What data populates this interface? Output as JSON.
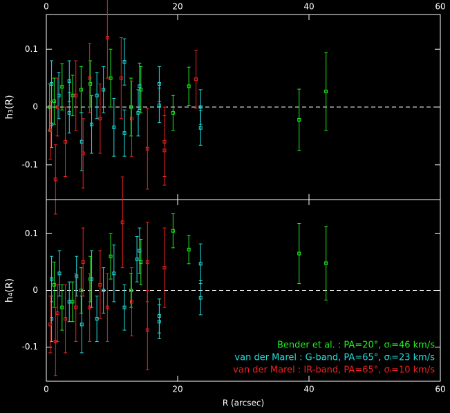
{
  "chart_data": [
    {
      "type": "errorbar",
      "ylabel": "h₃(R)",
      "xlim": [
        0,
        60
      ],
      "xticks": [
        0,
        20,
        40,
        60
      ],
      "xticks_position": "top",
      "ylim": [
        -0.16,
        0.16
      ],
      "yticks": [
        -0.1,
        0,
        0.1
      ],
      "zero_line": true,
      "series": [
        {
          "color": "#22ee22",
          "x": [
            38.5,
            42.6,
            21.7,
            19.3,
            14.4,
            12.9,
            9.8,
            6.7,
            5.3,
            4.0,
            2.4,
            1.2,
            0.5
          ],
          "values": [
            -0.022,
            0.027,
            0.036,
            -0.01,
            0.03,
            0.0,
            0.05,
            0.04,
            0.03,
            0.02,
            0.035,
            0.01,
            0.0
          ],
          "errors": [
            0.053,
            0.067,
            0.033,
            0.03,
            0.04,
            0.05,
            0.05,
            0.04,
            0.04,
            0.035,
            0.04,
            0.04,
            0.04
          ]
        },
        {
          "color": "#22dddd",
          "x": [
            23.5,
            23.5,
            17.2,
            17.2,
            14.2,
            14.0,
            11.9,
            11.9,
            10.3,
            8.7,
            7.7,
            6.9,
            5.4,
            3.5,
            3.5,
            1.9,
            0.8,
            0.8
          ],
          "values": [
            0.0,
            -0.036,
            0.04,
            0.003,
            0.036,
            -0.01,
            0.078,
            -0.045,
            -0.035,
            0.03,
            0.02,
            -0.03,
            -0.06,
            0.045,
            -0.01,
            0.02,
            0.04,
            -0.03
          ],
          "errors": [
            0.03,
            0.03,
            0.03,
            0.03,
            0.04,
            0.04,
            0.04,
            0.04,
            0.05,
            0.04,
            0.04,
            0.05,
            0.05,
            0.035,
            0.035,
            0.04,
            0.04,
            0.04
          ]
        },
        {
          "color": "#ee2222",
          "x": [
            22.8,
            18.0,
            18.0,
            15.4,
            13.0,
            11.4,
            9.3,
            8.2,
            6.6,
            5.6,
            4.5,
            2.9,
            1.7,
            1.4,
            0.6
          ],
          "values": [
            0.048,
            -0.06,
            -0.075,
            -0.072,
            -0.02,
            0.05,
            0.12,
            -0.02,
            0.05,
            -0.08,
            0.02,
            -0.06,
            0.0,
            -0.125,
            -0.04
          ],
          "errors": [
            0.05,
            0.06,
            0.06,
            0.07,
            0.065,
            0.07,
            0.07,
            0.06,
            0.06,
            0.06,
            0.06,
            0.06,
            0.05,
            0.06,
            0.05
          ]
        }
      ]
    },
    {
      "type": "errorbar",
      "ylabel": "h₄(R)",
      "xlabel": "R (arcsec)",
      "xlim": [
        0,
        60
      ],
      "xticks": [
        0,
        20,
        40,
        60
      ],
      "xticks_position": "bottom",
      "ylim": [
        -0.16,
        0.16
      ],
      "yticks": [
        -0.1,
        0,
        0.1
      ],
      "zero_line": true,
      "legend": "lower right",
      "series": [
        {
          "name": "Bender et al. : PA=20°, σᵢ=46 km/s",
          "color": "#22ee22",
          "x": [
            38.5,
            42.6,
            21.7,
            19.3,
            14.4,
            12.9,
            9.8,
            6.7,
            5.3,
            4.0,
            2.4,
            1.2
          ],
          "values": [
            0.065,
            0.048,
            0.072,
            0.105,
            0.05,
            0.0,
            0.06,
            0.02,
            0.0,
            -0.02,
            -0.03,
            0.01
          ],
          "errors": [
            0.053,
            0.065,
            0.025,
            0.03,
            0.04,
            0.03,
            0.04,
            0.04,
            0.04,
            0.035,
            0.04,
            0.04
          ]
        },
        {
          "name": "van der Marel : G-band, PA=65°, σᵢ=23 km/s",
          "color": "#22dddd",
          "x": [
            23.5,
            23.5,
            17.2,
            17.2,
            14.2,
            13.8,
            11.9,
            10.3,
            8.7,
            7.7,
            6.9,
            5.4,
            4.6,
            3.5,
            2.0,
            0.8,
            0.8
          ],
          "values": [
            0.047,
            -0.013,
            -0.045,
            -0.055,
            0.07,
            0.055,
            -0.03,
            0.03,
            0.0,
            -0.05,
            0.02,
            -0.06,
            0.025,
            -0.02,
            0.03,
            0.02,
            -0.05
          ],
          "errors": [
            0.035,
            0.03,
            0.03,
            0.03,
            0.04,
            0.04,
            0.04,
            0.05,
            0.04,
            0.04,
            0.05,
            0.05,
            0.035,
            0.035,
            0.04,
            0.04,
            0.04
          ]
        },
        {
          "name": "van der Marel : IR-band, PA=65°, σᵢ=10 km/s",
          "color": "#ee2222",
          "x": [
            18.0,
            15.4,
            15.4,
            13.0,
            11.6,
            9.3,
            8.2,
            6.6,
            5.6,
            4.5,
            2.9,
            1.7,
            1.4,
            0.6
          ],
          "values": [
            0.04,
            -0.07,
            0.05,
            -0.02,
            0.12,
            -0.03,
            0.01,
            -0.03,
            0.05,
            -0.03,
            -0.05,
            -0.04,
            -0.09,
            -0.06
          ],
          "errors": [
            0.07,
            0.07,
            0.07,
            0.06,
            0.08,
            0.06,
            0.06,
            0.06,
            0.06,
            0.06,
            0.06,
            0.05,
            0.06,
            0.05
          ]
        }
      ]
    }
  ]
}
